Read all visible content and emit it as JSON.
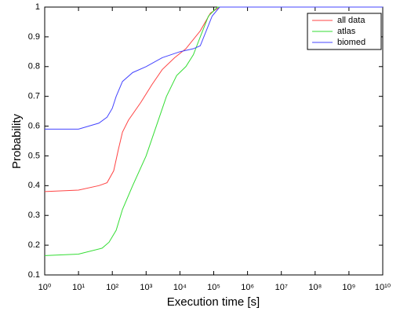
{
  "chart_data": {
    "type": "line",
    "xlabel": "Execution time [s]",
    "ylabel": "Probability",
    "xscale": "log",
    "xlim": [
      1,
      10000000000
    ],
    "ylim": [
      0.1,
      1
    ],
    "grid": false,
    "legend": "upper right",
    "xticks": [
      {
        "value": 1,
        "label": "10⁰"
      },
      {
        "value": 10,
        "label": "10¹"
      },
      {
        "value": 100,
        "label": "10²"
      },
      {
        "value": 1000,
        "label": "10³"
      },
      {
        "value": 10000,
        "label": "10⁴"
      },
      {
        "value": 100000,
        "label": "10⁵"
      },
      {
        "value": 1000000,
        "label": "10⁶"
      },
      {
        "value": 10000000,
        "label": "10⁷"
      },
      {
        "value": 100000000,
        "label": "10⁸"
      },
      {
        "value": 1000000000,
        "label": "10⁹"
      },
      {
        "value": 10000000000,
        "label": "10¹⁰"
      }
    ],
    "yticks": [
      0.1,
      0.2,
      0.3,
      0.4,
      0.5,
      0.6,
      0.7,
      0.8,
      0.9,
      1
    ],
    "series": [
      {
        "name": "all data",
        "color": "#ff4444",
        "x": [
          1,
          10,
          40,
          70,
          110,
          150,
          200,
          300,
          700,
          1500,
          3000,
          7000,
          15000,
          40000,
          80000,
          150000,
          10000000000
        ],
        "values": [
          0.38,
          0.385,
          0.4,
          0.41,
          0.45,
          0.52,
          0.58,
          0.62,
          0.68,
          0.74,
          0.79,
          0.83,
          0.86,
          0.92,
          0.98,
          1.0,
          1.0
        ]
      },
      {
        "name": "atlas",
        "color": "#33dd33",
        "x": [
          1,
          10,
          50,
          80,
          130,
          200,
          400,
          1000,
          2000,
          4000,
          8000,
          15000,
          25000,
          40000,
          70000,
          130000,
          10000000000
        ],
        "values": [
          0.165,
          0.17,
          0.19,
          0.21,
          0.25,
          0.32,
          0.4,
          0.5,
          0.6,
          0.7,
          0.77,
          0.8,
          0.84,
          0.9,
          0.97,
          1.0,
          1.0
        ]
      },
      {
        "name": "biomed",
        "color": "#4444ff",
        "x": [
          1,
          10,
          40,
          70,
          100,
          130,
          200,
          400,
          1000,
          3000,
          10000,
          25000,
          40000,
          60000,
          90000,
          150000,
          10000000000
        ],
        "values": [
          0.59,
          0.59,
          0.61,
          0.63,
          0.66,
          0.7,
          0.75,
          0.78,
          0.8,
          0.83,
          0.85,
          0.86,
          0.87,
          0.92,
          0.97,
          1.0,
          1.0
        ]
      }
    ]
  }
}
